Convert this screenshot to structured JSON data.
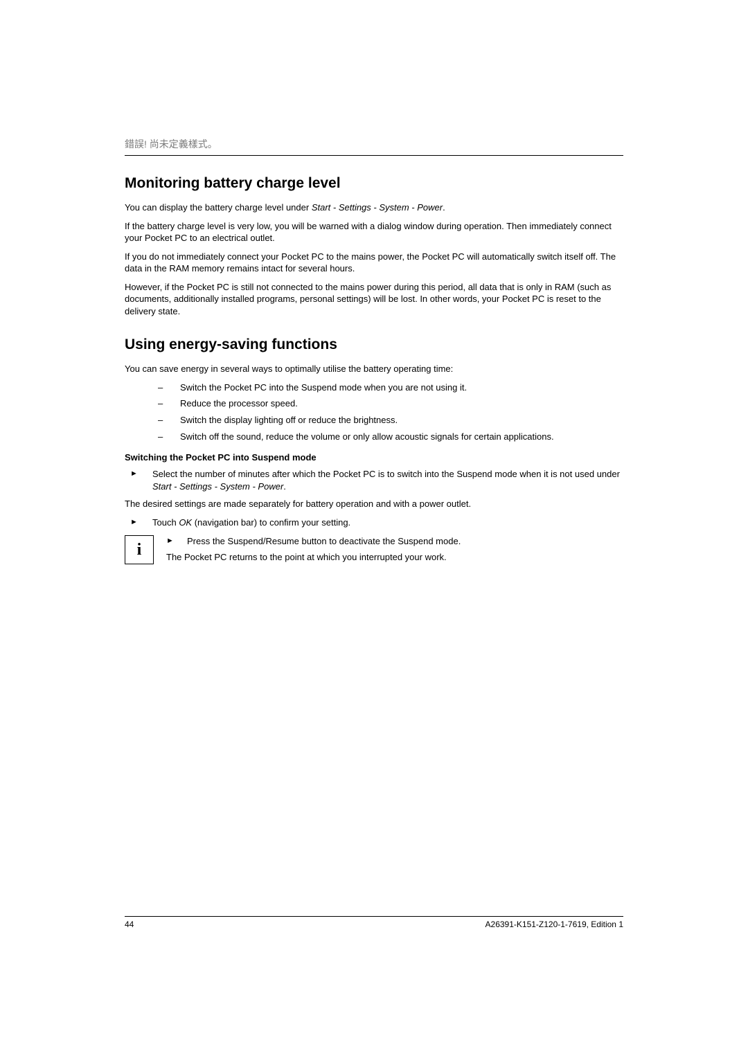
{
  "header": {
    "text": "錯誤! 尚未定義樣式。"
  },
  "section1": {
    "title": "Monitoring battery charge level",
    "p1a": "You can display the battery charge level under ",
    "p1b": "Start - Settings - System - Power",
    "p1c": ".",
    "p2": "If the battery charge level is very low, you will be warned with a dialog window during operation. Then immediately connect your Pocket PC to an electrical outlet.",
    "p3": "If you do not immediately connect your Pocket PC to the mains power, the Pocket PC will automatically switch itself off. The data in the RAM memory remains intact for several hours.",
    "p4": "However, if the Pocket PC is still not connected to the mains power during this period, all data that is only in RAM (such as documents, additionally installed programs, personal settings) will be lost. In other words, your Pocket PC is reset to the delivery state."
  },
  "section2": {
    "title": "Using energy-saving functions",
    "intro": "You can save energy in several ways to optimally utilise the battery operating time:",
    "bullets": [
      "Switch the Pocket PC into the Suspend mode when you are not using it.",
      "Reduce the processor speed.",
      "Switch the display lighting off or reduce the brightness.",
      "Switch off the sound, reduce the volume or only allow acoustic signals for certain applications."
    ],
    "subheading": "Switching the Pocket PC into Suspend mode",
    "arrow1a": "Select the number of minutes after which the Pocket PC is to switch into the Suspend mode when it is not used under ",
    "arrow1b": "Start - Settings - System - Power",
    "arrow1c": ".",
    "desired": "The desired settings are made separately for battery operation and with a power outlet.",
    "arrow2a": "Touch ",
    "arrow2b": "OK",
    "arrow2c": " (navigation bar) to confirm your setting.",
    "info_letter": "i",
    "info_arrow": "Press the Suspend/Resume button to deactivate the Suspend mode.",
    "info_text": "The Pocket PC returns to the point at which you interrupted your work."
  },
  "footer": {
    "page": "44",
    "ref": "A26391-K151-Z120-1-7619, Edition 1"
  }
}
